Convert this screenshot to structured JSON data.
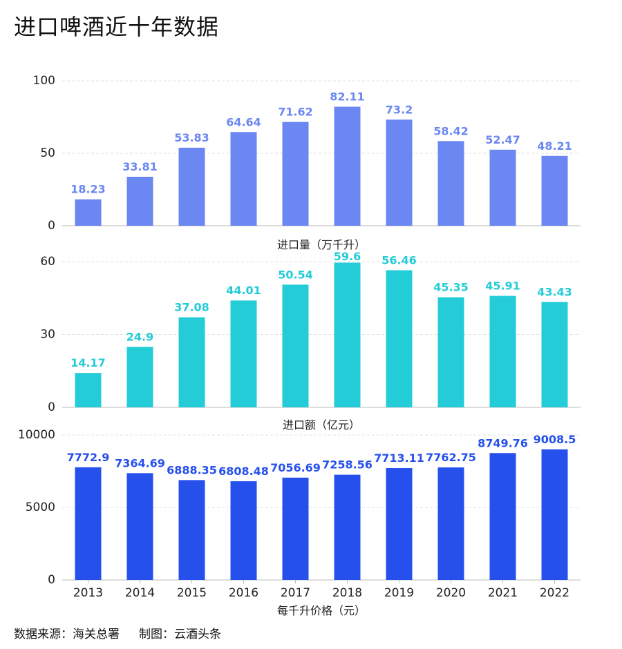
{
  "title": "进口啤酒近十年数据",
  "footer": {
    "source": "数据来源：海关总署",
    "credit": "制图：云酒头条"
  },
  "colors": {
    "volume": "#6B87F2",
    "value": "#24CCD8",
    "price": "#2650EC",
    "grid": "#e2e2e2",
    "axis": "#bbbbbb",
    "text": "#222222"
  },
  "chart_data": [
    {
      "type": "bar",
      "title": "",
      "xlabel": "进口量（万千升）",
      "ylabel": "",
      "categories": [
        "2013",
        "2014",
        "2015",
        "2016",
        "2017",
        "2018",
        "2019",
        "2020",
        "2021",
        "2022"
      ],
      "values": [
        18.23,
        33.81,
        53.83,
        64.64,
        71.62,
        82.11,
        73.2,
        58.42,
        52.47,
        48.21
      ],
      "labels": [
        "18.23",
        "33.81",
        "53.83",
        "64.64",
        "71.62",
        "82.11",
        "73.2",
        "58.42",
        "52.47",
        "48.21"
      ],
      "ylim": [
        0,
        100
      ],
      "yticks": [
        0,
        50,
        100
      ],
      "grid": true
    },
    {
      "type": "bar",
      "title": "",
      "xlabel": "进口额（亿元）",
      "ylabel": "",
      "categories": [
        "2013",
        "2014",
        "2015",
        "2016",
        "2017",
        "2018",
        "2019",
        "2020",
        "2021",
        "2022"
      ],
      "values": [
        14.17,
        24.9,
        37.08,
        44.01,
        50.54,
        59.6,
        56.46,
        45.35,
        45.91,
        43.43
      ],
      "labels": [
        "14.17",
        "24.9",
        "37.08",
        "44.01",
        "50.54",
        "59.6",
        "56.46",
        "45.35",
        "45.91",
        "43.43"
      ],
      "ylim": [
        0,
        60
      ],
      "yticks": [
        0,
        30,
        60
      ],
      "grid": true
    },
    {
      "type": "bar",
      "title": "",
      "xlabel": "每千升价格（元）",
      "ylabel": "",
      "categories": [
        "2013",
        "2014",
        "2015",
        "2016",
        "2017",
        "2018",
        "2019",
        "2020",
        "2021",
        "2022"
      ],
      "values": [
        7772.9,
        7364.69,
        6888.35,
        6808.48,
        7056.69,
        7258.56,
        7713.11,
        7762.75,
        8749.76,
        9008.5
      ],
      "labels": [
        "7772.9",
        "7364.69",
        "6888.35",
        "6808.48",
        "7056.69",
        "7258.56",
        "7713.11",
        "7762.75",
        "8749.76",
        "9008.5"
      ],
      "ylim": [
        0,
        10000
      ],
      "yticks": [
        0,
        5000,
        10000
      ],
      "grid": true,
      "show_year_ticks": true
    }
  ]
}
